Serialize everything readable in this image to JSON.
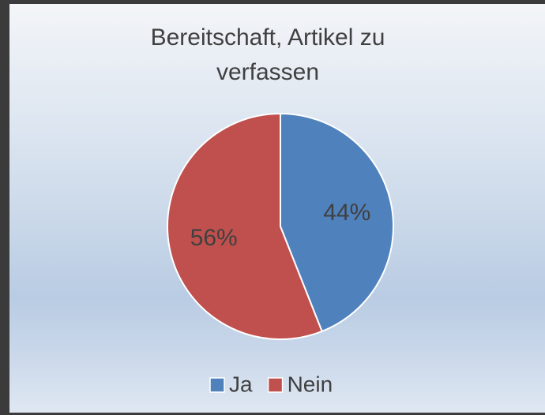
{
  "chart_data": {
    "type": "pie",
    "title": "Bereitschaft, Artikel zu verfassen",
    "categories": [
      "Ja",
      "Nein"
    ],
    "values": [
      44,
      56
    ],
    "value_labels": [
      "44%",
      "56%"
    ],
    "colors": [
      "#4f81bd",
      "#c0504d"
    ],
    "legend": "bottom"
  }
}
